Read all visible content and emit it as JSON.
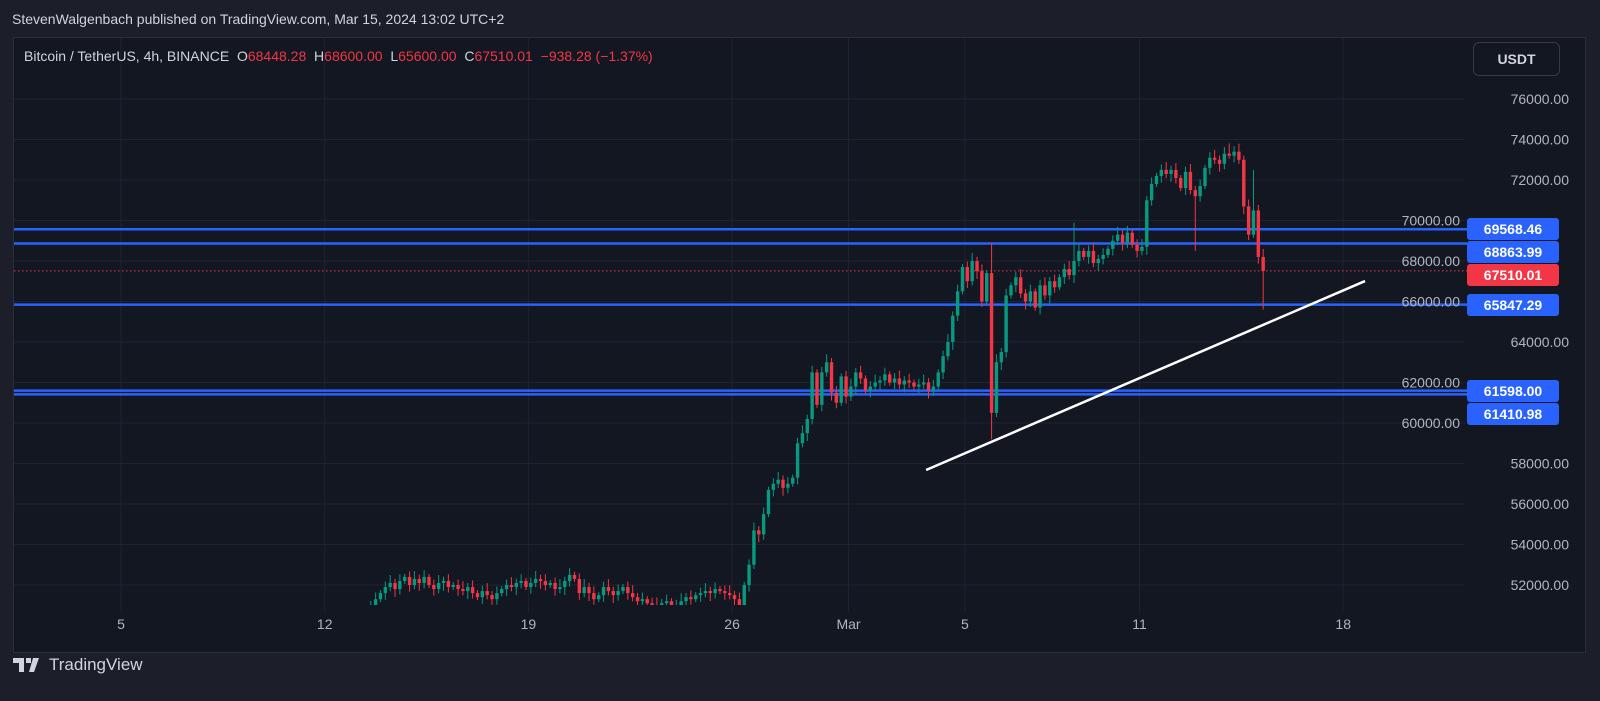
{
  "header": {
    "published": "StevenWalgenbach published on TradingView.com, Mar 15, 2024 13:02 UTC+2"
  },
  "legend": {
    "symbol": "Bitcoin / TetherUS, 4h, BINANCE",
    "o_label": "O",
    "o": "68448.28",
    "h_label": "H",
    "h": "68600.00",
    "l_label": "L",
    "l": "65600.00",
    "c_label": "C",
    "c": "67510.01",
    "change": "−938.28 (−1.37%)"
  },
  "currency_button": "USDT",
  "footer": {
    "brand": "TradingView"
  },
  "colors": {
    "up": "#089981",
    "down": "#f23645",
    "level": "#2962ff",
    "trendline": "#ffffff",
    "background": "#131722"
  },
  "chart_data": {
    "type": "candlestick",
    "interval": "4h",
    "start": "2024-02-13 00:00",
    "closes": [
      49800,
      50200,
      50600,
      51000,
      51300,
      51600,
      51900,
      52100,
      51800,
      52200,
      52400,
      52000,
      52300,
      52100,
      52400,
      52000,
      51800,
      52100,
      52200,
      51900,
      52000,
      51800,
      51700,
      51900,
      51600,
      51400,
      51700,
      51500,
      51300,
      51600,
      51800,
      52000,
      51900,
      52100,
      52200,
      51900,
      52100,
      52300,
      52200,
      52000,
      52100,
      51800,
      51900,
      52200,
      52500,
      52300,
      51600,
      51900,
      51600,
      51300,
      51500,
      51900,
      51700,
      51500,
      51700,
      51900,
      51600,
      51400,
      51200,
      51300,
      51100,
      51000,
      50900,
      51100,
      51200,
      50900,
      51000,
      51200,
      51400,
      51300,
      51500,
      51600,
      51700,
      51600,
      51800,
      51700,
      51600,
      51500,
      51300,
      51000,
      52000,
      53000,
      54700,
      54500,
      55500,
      56700,
      57000,
      57200,
      56800,
      57000,
      57300,
      59000,
      59500,
      60200,
      62500,
      60900,
      62500,
      63000,
      61500,
      61000,
      62300,
      61300,
      61800,
      62500,
      62200,
      61600,
      61800,
      62000,
      62100,
      62400,
      62000,
      62200,
      61900,
      62100,
      62000,
      61800,
      61900,
      62000,
      61600,
      61800,
      62500,
      63300,
      64000,
      65300,
      66500,
      67700,
      67000,
      68000,
      67500,
      66000,
      67400,
      60500,
      63000,
      63500,
      66300,
      66800,
      67200,
      66400,
      66000,
      66500,
      65700,
      66800,
      66300,
      67000,
      66700,
      67200,
      67600,
      67300,
      68000,
      68500,
      68200,
      68500,
      67900,
      68100,
      68300,
      68600,
      69000,
      69300,
      68900,
      69400,
      68800,
      68500,
      68700,
      71000,
      71800,
      72200,
      72500,
      72300,
      72500,
      72100,
      71600,
      72400,
      71500,
      71200,
      71700,
      72600,
      73100,
      73000,
      72800,
      73300,
      73200,
      73400,
      73000,
      70700,
      69300,
      70500,
      68200,
      67510
    ],
    "notable_wicks": [
      {
        "date": "2024-03-05 20:00",
        "low": 59200,
        "high": 68900
      },
      {
        "date": "2024-03-08 16:00",
        "high": 69900
      },
      {
        "date": "2024-03-12 20:00",
        "low": 68500
      },
      {
        "date": "2024-03-14 00:00",
        "high": 73800
      },
      {
        "date": "2024-03-14 20:00",
        "high": 72500
      },
      {
        "date": "2024-03-15 04:00",
        "low": 65600,
        "high": 68600
      }
    ],
    "y_ticks": [
      "76000.00",
      "74000.00",
      "72000.00",
      "70000.00",
      "68000.00",
      "66000.00",
      "64000.00",
      "62000.00",
      "60000.00",
      "58000.00",
      "56000.00",
      "54000.00",
      "52000.00"
    ],
    "ylim": [
      51000,
      77000
    ],
    "x_ticks": [
      {
        "label": "5",
        "date": "2024-02-05"
      },
      {
        "label": "12",
        "date": "2024-02-12"
      },
      {
        "label": "19",
        "date": "2024-02-19"
      },
      {
        "label": "26",
        "date": "2024-02-26"
      },
      {
        "label": "Mar",
        "date": "2024-03-01"
      },
      {
        "label": "5",
        "date": "2024-03-05"
      },
      {
        "label": "11",
        "date": "2024-03-11"
      },
      {
        "label": "18",
        "date": "2024-03-18"
      }
    ],
    "last_price": {
      "value": 67510.01,
      "label": "67510.01"
    },
    "levels": [
      {
        "value": 69568.46,
        "label": "69568.46"
      },
      {
        "value": 68863.99,
        "label": "68863.99"
      },
      {
        "value": 65847.29,
        "label": "65847.29"
      },
      {
        "value": 61598.0,
        "label": "61598.00"
      },
      {
        "value": 61410.98,
        "label": "61410.98"
      }
    ],
    "trendline": {
      "start": {
        "date": "2024-03-03 16:00",
        "price": 57680
      },
      "end": {
        "date": "2024-03-18 18:00",
        "price": 67010
      }
    },
    "grid": true
  }
}
